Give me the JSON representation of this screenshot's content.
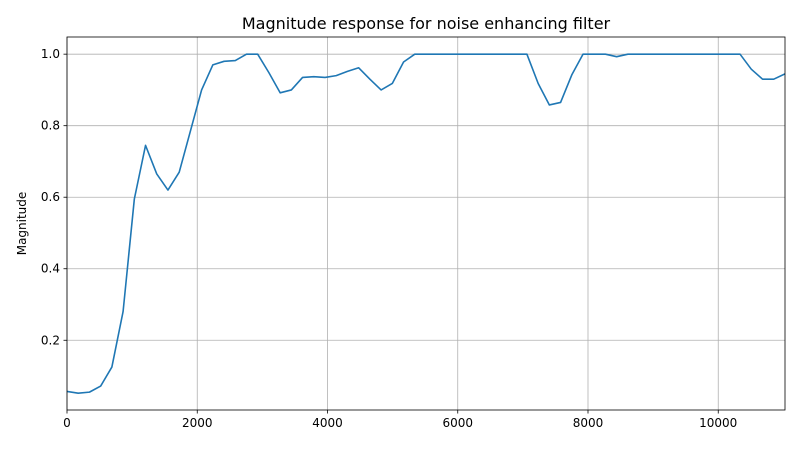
{
  "chart_data": {
    "type": "line",
    "title": "Magnitude response for noise enhancing filter",
    "xlabel": "",
    "ylabel": "Magnitude",
    "xlim": [
      0,
      11025
    ],
    "ylim": [
      0.005,
      1.048
    ],
    "xticks": [
      0,
      2000,
      4000,
      6000,
      8000,
      10000
    ],
    "yticks": [
      0.2,
      0.4,
      0.6,
      0.8,
      1.0
    ],
    "xtick_labels": [
      "0",
      "2000",
      "4000",
      "6000",
      "8000",
      "10000"
    ],
    "ytick_labels": [
      "0.2",
      "0.4",
      "0.6",
      "0.8",
      "1.0"
    ],
    "grid": true,
    "series": [
      {
        "color": "#1f77b4",
        "x": [
          0,
          172,
          345,
          517,
          689,
          861,
          1034,
          1206,
          1378,
          1550,
          1723,
          1895,
          2067,
          2239,
          2412,
          2584,
          2756,
          2928,
          3101,
          3273,
          3445,
          3617,
          3790,
          3962,
          4134,
          4306,
          4479,
          4651,
          4823,
          4995,
          5168,
          5340,
          5512,
          5684,
          5857,
          6029,
          6201,
          6373,
          6546,
          6718,
          6890,
          7062,
          7235,
          7407,
          7579,
          7751,
          7924,
          8096,
          8268,
          8440,
          8613,
          8785,
          8957,
          9129,
          9302,
          9474,
          9646,
          9818,
          9991,
          10163,
          10335,
          10507,
          10680,
          10852,
          11025
        ],
        "y": [
          0.057,
          0.052,
          0.055,
          0.072,
          0.125,
          0.28,
          0.595,
          0.745,
          0.665,
          0.62,
          0.67,
          0.785,
          0.9,
          0.97,
          0.98,
          0.982,
          1.0,
          1.0,
          0.948,
          0.892,
          0.9,
          0.935,
          0.937,
          0.935,
          0.94,
          0.952,
          0.962,
          0.93,
          0.9,
          0.918,
          0.978,
          1.0,
          1.0,
          1.0,
          1.0,
          1.0,
          1.0,
          1.0,
          1.0,
          1.0,
          1.0,
          1.0,
          0.918,
          0.858,
          0.865,
          0.942,
          1.0,
          1.0,
          1.0,
          0.993,
          1.0,
          1.0,
          1.0,
          1.0,
          1.0,
          1.0,
          1.0,
          1.0,
          1.0,
          1.0,
          1.0,
          0.958,
          0.93,
          0.93,
          0.945
        ]
      }
    ]
  }
}
